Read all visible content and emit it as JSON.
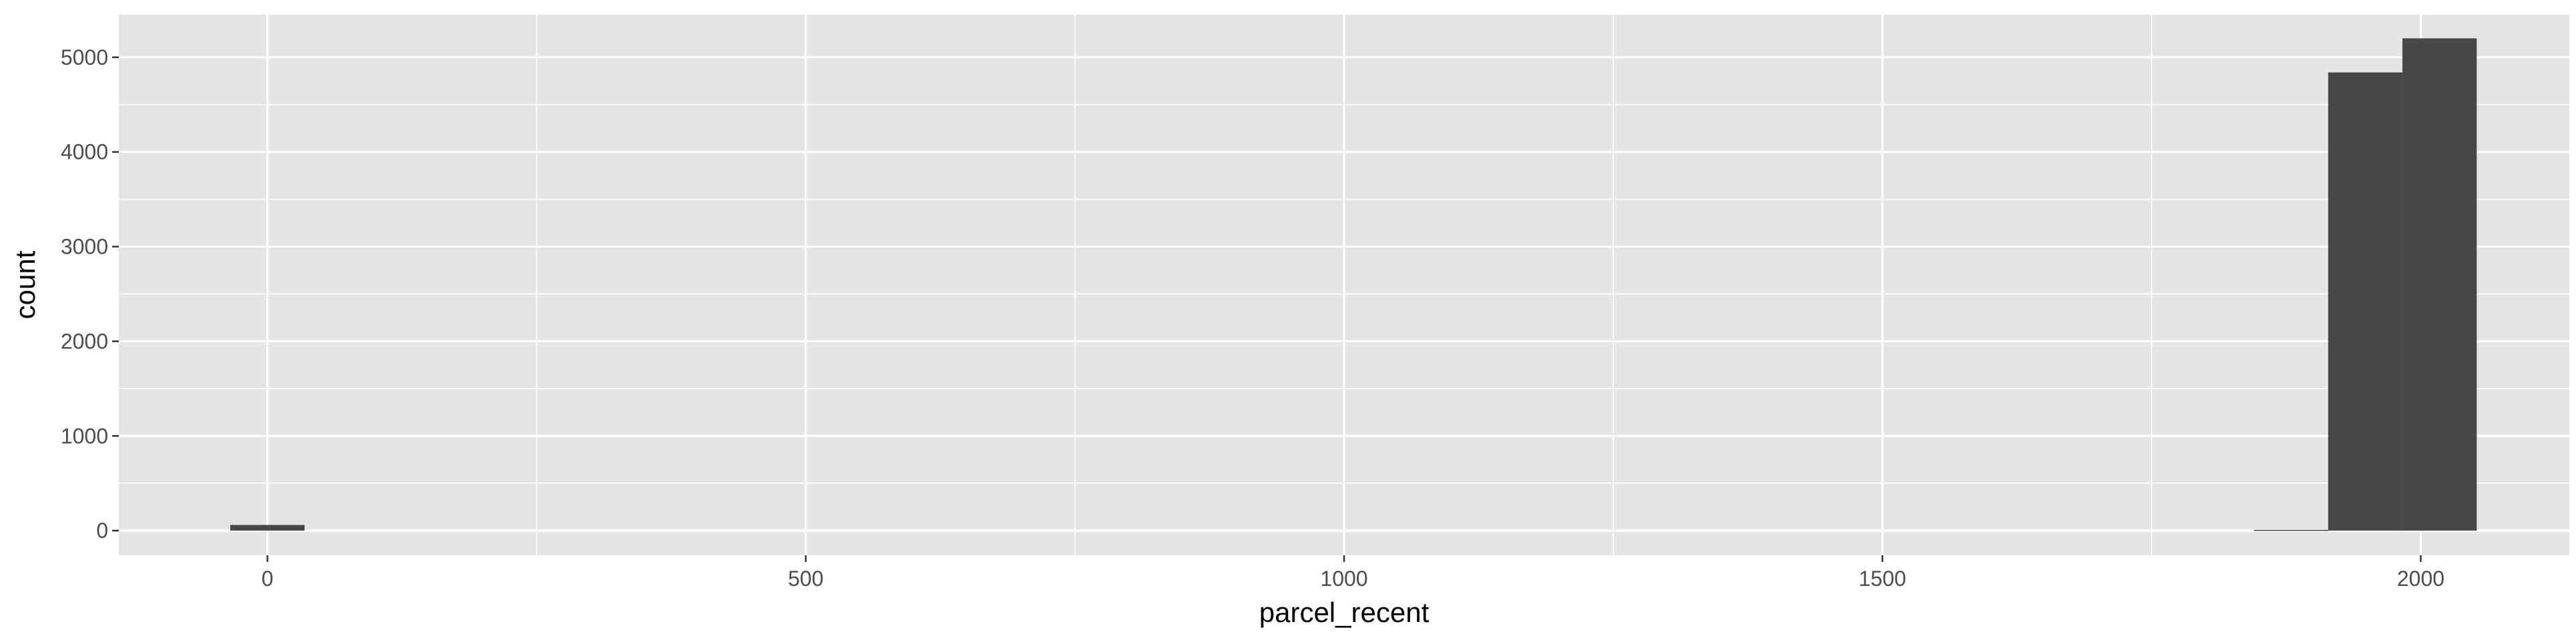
{
  "chart_data": {
    "type": "bar",
    "title": "",
    "xlabel": "parcel_recent",
    "ylabel": "count",
    "xlim": [
      -138,
      2138
    ],
    "ylim": [
      -260,
      5450
    ],
    "x_ticks": [
      0,
      500,
      1000,
      1500,
      2000
    ],
    "y_ticks": [
      0,
      1000,
      2000,
      3000,
      4000,
      5000
    ],
    "x_tick_labels": [
      "0",
      "500",
      "1000",
      "1500",
      "2000"
    ],
    "y_tick_labels": [
      "0",
      "1000",
      "2000",
      "3000",
      "4000",
      "5000"
    ],
    "grid": true,
    "bins": [
      {
        "x0": -34.5,
        "x1": 34.5,
        "count": 60
      },
      {
        "x0": 1845,
        "x1": 1914,
        "count": 8
      },
      {
        "x0": 1914,
        "x1": 1983,
        "count": 4840
      },
      {
        "x0": 1983,
        "x1": 2052,
        "count": 5200
      }
    ],
    "colors": {
      "panel": "#e5e5e5",
      "grid": "#ffffff",
      "bar": "#474747",
      "tick_mark": "#333333"
    }
  }
}
